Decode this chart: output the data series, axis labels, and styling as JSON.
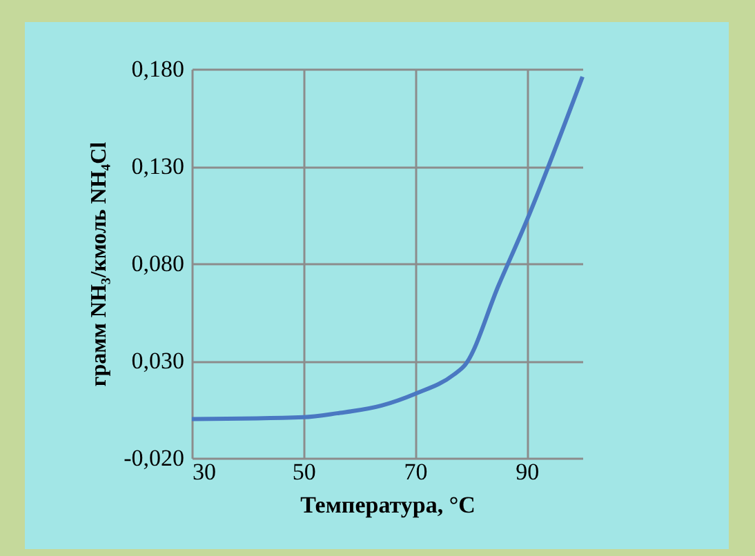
{
  "chart_data": {
    "type": "line",
    "xlabel": "Температура, °C",
    "ylabel": "грамм NH₃/кмоль NH₄Cl",
    "x": [
      30,
      50,
      56,
      64,
      70,
      77,
      79,
      85,
      90,
      100
    ],
    "series": [
      {
        "color": "#4a78c2",
        "values": [
          0,
          0.001,
          0.003,
          0.007,
          0.013,
          0.023,
          0.028,
          0.069,
          0.102,
          0.176
        ]
      }
    ],
    "xlim": [
      30,
      100
    ],
    "xticks": [
      30,
      50,
      70,
      90
    ],
    "ylim": [
      -0.02,
      0.18
    ],
    "yticks": [
      {
        "value": -0.02,
        "label": "-0,020"
      },
      {
        "value": 0.03,
        "label": "0,030"
      },
      {
        "value": 0.08,
        "label": "0,080"
      },
      {
        "value": 0.13,
        "label": "0,130"
      },
      {
        "value": 0.18,
        "label": "0,180"
      }
    ],
    "grid": true,
    "marker": "none",
    "line_style": "solid"
  }
}
